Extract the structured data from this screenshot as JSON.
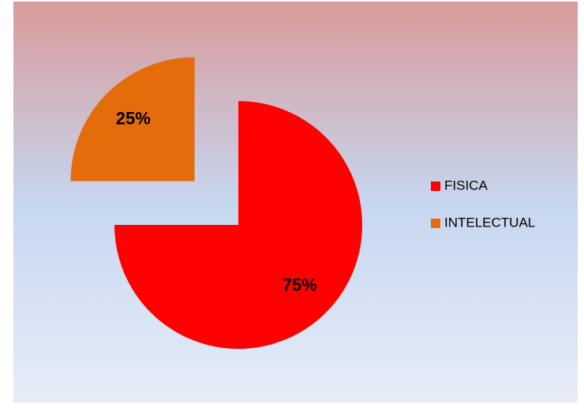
{
  "chart_data": {
    "type": "pie",
    "categories": [
      "FISICA",
      "INTELECTUAL"
    ],
    "values": [
      75,
      25
    ],
    "value_labels": [
      "75%",
      "25%"
    ],
    "colors": [
      "#ff0000",
      "#e46c0a"
    ],
    "explode": [
      false,
      true
    ],
    "legend": "right"
  }
}
